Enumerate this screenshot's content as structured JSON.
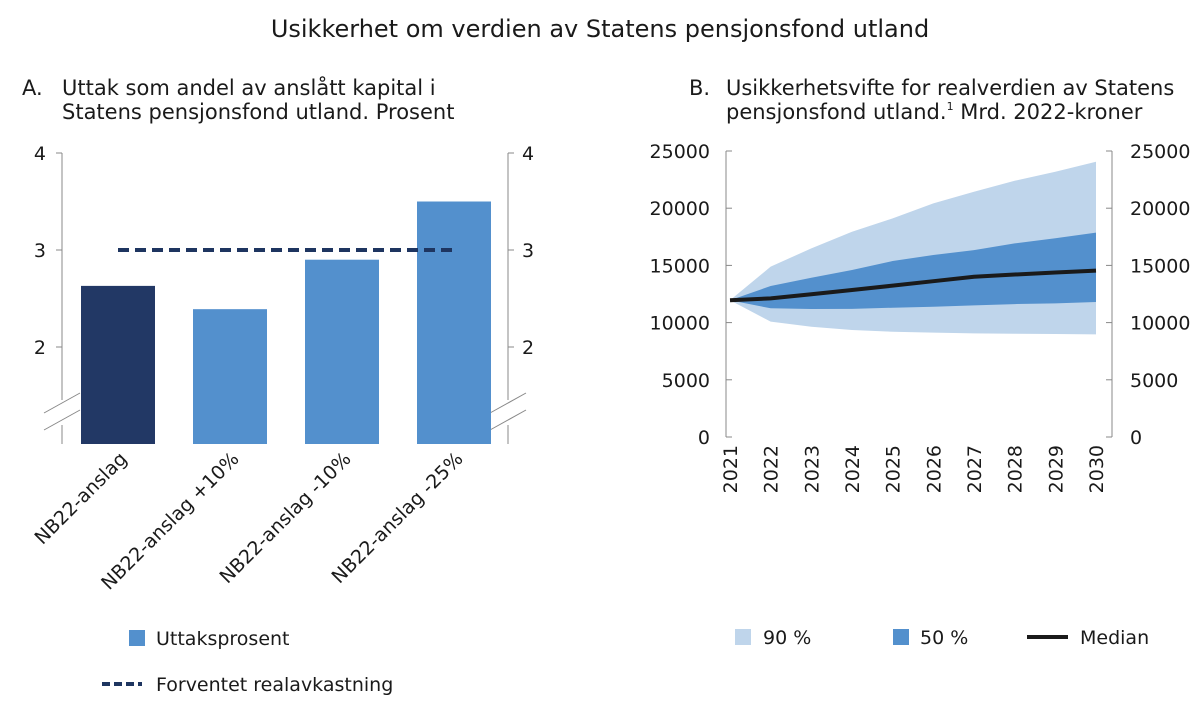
{
  "title": "Usikkerhet om verdien av Statens pensjonsfond utland",
  "colors": {
    "dark": "#223865",
    "bar": "#5390cd",
    "band90": "#bfd5eb",
    "band50": "#5390cd",
    "median": "#1a1a1a",
    "dash": "#1e3560"
  },
  "chart_data": [
    {
      "type": "bar",
      "panel": "A.",
      "title_lines": [
        "Uttak som andel av anslått kapital i",
        "Statens pensjonsfond utland. Prosent"
      ],
      "categories": [
        "NB22-anslag",
        "NB22-anslag +10%",
        "NB22-anslag -10%",
        "NB22-anslag -25%"
      ],
      "series": [
        {
          "name": "Uttaksprosent",
          "values": [
            2.63,
            2.39,
            2.9,
            3.5
          ]
        }
      ],
      "reference_line": {
        "name": "Forventet realavkastning",
        "value": 3.0
      },
      "ylim": [
        1,
        4
      ],
      "axis_break": true,
      "yticks": [
        2,
        3,
        4
      ],
      "legend": "bottom"
    },
    {
      "type": "area",
      "panel": "B.",
      "title_lines": [
        "Usikkerhetsvifte for realverdien av Statens",
        "pensjonsfond utland."
      ],
      "title_sup": "1",
      "title_tail": " Mrd. 2022-kroner",
      "x": [
        2021,
        2022,
        2023,
        2024,
        2025,
        2026,
        2027,
        2028,
        2029,
        2030
      ],
      "series": [
        {
          "name": "90 %",
          "lower": [
            11950,
            10080,
            9640,
            9350,
            9200,
            9120,
            9060,
            9030,
            9000,
            8970
          ],
          "upper": [
            11950,
            14890,
            16490,
            17940,
            19110,
            20420,
            21440,
            22400,
            23190,
            24060
          ]
        },
        {
          "name": "50 %",
          "lower": [
            11950,
            11250,
            11190,
            11200,
            11300,
            11390,
            11510,
            11620,
            11680,
            11800
          ],
          "upper": [
            11950,
            13200,
            13920,
            14600,
            15380,
            15910,
            16340,
            16920,
            17370,
            17860
          ]
        },
        {
          "name": "Median",
          "values": [
            11950,
            12120,
            12480,
            12850,
            13230,
            13620,
            14010,
            14200,
            14380,
            14540
          ]
        }
      ],
      "ylim": [
        0,
        25000
      ],
      "yticks": [
        0,
        5000,
        10000,
        15000,
        20000,
        25000
      ],
      "legend": "bottom"
    }
  ]
}
